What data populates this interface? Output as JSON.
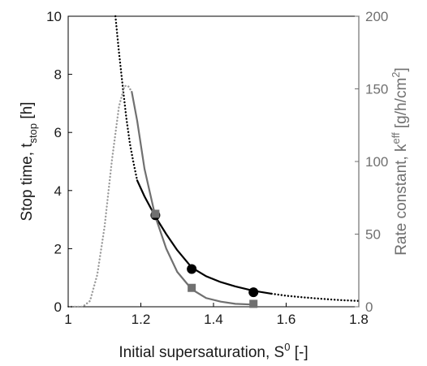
{
  "chart_data": {
    "type": "line",
    "xlabel": "Initial supersaturation, S",
    "xlabel_sup": "0",
    "xlabel_suffix": " [-]",
    "ylabel_left": "Stop time, t",
    "ylabel_left_sub": "stop",
    "ylabel_left_suffix": " [h]",
    "ylabel_right": "Rate constant, k",
    "ylabel_right_sup": "eff",
    "ylabel_right_suffix": " [g/h/cm",
    "ylabel_right_sup2": "2",
    "ylabel_right_suffix2": "]",
    "xlim": [
      1,
      1.8
    ],
    "ylim_left": [
      0,
      10
    ],
    "ylim_right": [
      0,
      200
    ],
    "xticks": [
      "1",
      "1.2",
      "1.4",
      "1.6",
      "1.8"
    ],
    "yticks_left": [
      "0",
      "2",
      "4",
      "6",
      "8",
      "10"
    ],
    "yticks_right": [
      "0",
      "50",
      "100",
      "150",
      "200"
    ],
    "grid": false,
    "colors": {
      "stop_time": "#000000",
      "rate_constant": "#707070",
      "rate_constant_dotted": "#9a9a9a",
      "axis_right": "#707070"
    },
    "series": [
      {
        "axis": "left",
        "style": "dotted",
        "color": "#000000",
        "x": [
          1.13,
          1.14,
          1.15,
          1.16,
          1.17,
          1.18,
          1.19
        ],
        "y": [
          10.0,
          8.75,
          7.6,
          6.5,
          5.6,
          4.95,
          4.35
        ]
      },
      {
        "axis": "left",
        "style": "solid",
        "color": "#000000",
        "x": [
          1.19,
          1.21,
          1.24,
          1.27,
          1.3,
          1.34,
          1.38,
          1.42,
          1.46,
          1.51,
          1.56
        ],
        "y": [
          4.35,
          3.8,
          3.1,
          2.5,
          1.95,
          1.35,
          1.05,
          0.85,
          0.7,
          0.55,
          0.45
        ]
      },
      {
        "axis": "left",
        "style": "dotted",
        "color": "#000000",
        "x": [
          1.56,
          1.6,
          1.65,
          1.7,
          1.75,
          1.8
        ],
        "y": [
          0.45,
          0.38,
          0.32,
          0.27,
          0.23,
          0.2
        ]
      },
      {
        "axis": "right",
        "style": "dotted",
        "color": "#9a9a9a",
        "x": [
          1.0,
          1.04,
          1.06,
          1.08,
          1.1,
          1.12,
          1.14,
          1.155,
          1.165,
          1.175
        ],
        "y": [
          0,
          0,
          4,
          22,
          55,
          100,
          138,
          152,
          152,
          148
        ]
      },
      {
        "axis": "right",
        "style": "solid",
        "color": "#707070",
        "x": [
          1.175,
          1.19,
          1.21,
          1.24,
          1.27,
          1.3,
          1.34,
          1.38,
          1.42,
          1.46,
          1.51
        ],
        "y": [
          148,
          128,
          95,
          62,
          40,
          24,
          12,
          6,
          3.5,
          2,
          1.5
        ]
      }
    ],
    "points": [
      {
        "axis": "left",
        "shape": "circle",
        "color": "#000000",
        "x": 1.24,
        "y": 3.15
      },
      {
        "axis": "left",
        "shape": "circle",
        "color": "#000000",
        "x": 1.34,
        "y": 1.3
      },
      {
        "axis": "left",
        "shape": "circle",
        "color": "#000000",
        "x": 1.51,
        "y": 0.5
      },
      {
        "axis": "right",
        "shape": "square",
        "color": "#707070",
        "x": 1.24,
        "y": 64
      },
      {
        "axis": "right",
        "shape": "square",
        "color": "#707070",
        "x": 1.34,
        "y": 13
      },
      {
        "axis": "right",
        "shape": "square",
        "color": "#707070",
        "x": 1.51,
        "y": 2
      }
    ]
  }
}
